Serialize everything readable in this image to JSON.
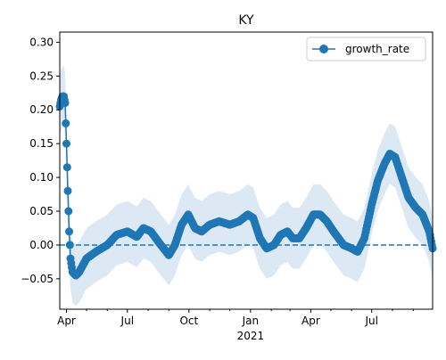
{
  "chart_data": {
    "type": "line",
    "title": "KY",
    "xlabel": "",
    "ylabel": "",
    "x_range": [
      "2020-03-22",
      "2021-09-30"
    ],
    "ylim": [
      -0.095,
      0.315
    ],
    "y_ticks": [
      -0.05,
      0.0,
      0.05,
      0.1,
      0.15,
      0.2,
      0.25,
      0.3
    ],
    "y_tick_labels": [
      "−0.05",
      "0.00",
      "0.05",
      "0.10",
      "0.15",
      "0.20",
      "0.25",
      "0.30"
    ],
    "x_ticks": [
      {
        "date": "2020-04-01",
        "label": "Apr",
        "sublabel": ""
      },
      {
        "date": "2020-07-01",
        "label": "Jul",
        "sublabel": ""
      },
      {
        "date": "2020-10-01",
        "label": "Oct",
        "sublabel": ""
      },
      {
        "date": "2021-01-01",
        "label": "Jan",
        "sublabel": "2021"
      },
      {
        "date": "2021-04-01",
        "label": "Apr",
        "sublabel": ""
      },
      {
        "date": "2021-07-01",
        "label": "Jul",
        "sublabel": ""
      }
    ],
    "minor_x_ticks": [
      "2020-05-01",
      "2020-06-01",
      "2020-08-01",
      "2020-09-01",
      "2020-11-01",
      "2020-12-01",
      "2021-02-01",
      "2021-03-01",
      "2021-05-01",
      "2021-06-01",
      "2021-08-01",
      "2021-09-01"
    ],
    "reference_line": {
      "y": 0,
      "style": "dashed"
    },
    "legend": {
      "position": "top-right",
      "entries": [
        "growth_rate"
      ]
    },
    "grid": false,
    "series": [
      {
        "name": "growth_rate",
        "color": "#1f77b4",
        "band_color": "#dce9f5",
        "band_width": 0.045,
        "points": [
          {
            "x": "2020-03-22",
            "y": 0.205
          },
          {
            "x": "2020-03-24",
            "y": 0.215
          },
          {
            "x": "2020-03-26",
            "y": 0.22
          },
          {
            "x": "2020-03-28",
            "y": 0.22
          },
          {
            "x": "2020-03-30",
            "y": 0.21
          },
          {
            "x": "2020-04-01",
            "y": 0.15
          },
          {
            "x": "2020-04-03",
            "y": 0.08
          },
          {
            "x": "2020-04-05",
            "y": 0.02
          },
          {
            "x": "2020-04-07",
            "y": -0.02
          },
          {
            "x": "2020-04-10",
            "y": -0.04
          },
          {
            "x": "2020-04-15",
            "y": -0.045
          },
          {
            "x": "2020-04-20",
            "y": -0.04
          },
          {
            "x": "2020-05-01",
            "y": -0.02
          },
          {
            "x": "2020-05-15",
            "y": -0.01
          },
          {
            "x": "2020-06-01",
            "y": 0.0
          },
          {
            "x": "2020-06-15",
            "y": 0.015
          },
          {
            "x": "2020-07-01",
            "y": 0.02
          },
          {
            "x": "2020-07-15",
            "y": 0.012
          },
          {
            "x": "2020-07-25",
            "y": 0.025
          },
          {
            "x": "2020-08-05",
            "y": 0.02
          },
          {
            "x": "2020-08-20",
            "y": 0.0
          },
          {
            "x": "2020-09-01",
            "y": -0.015
          },
          {
            "x": "2020-09-10",
            "y": 0.0
          },
          {
            "x": "2020-09-20",
            "y": 0.03
          },
          {
            "x": "2020-09-30",
            "y": 0.045
          },
          {
            "x": "2020-10-10",
            "y": 0.025
          },
          {
            "x": "2020-10-20",
            "y": 0.02
          },
          {
            "x": "2020-11-01",
            "y": 0.03
          },
          {
            "x": "2020-11-15",
            "y": 0.035
          },
          {
            "x": "2020-12-01",
            "y": 0.03
          },
          {
            "x": "2020-12-15",
            "y": 0.035
          },
          {
            "x": "2020-12-28",
            "y": 0.045
          },
          {
            "x": "2021-01-05",
            "y": 0.04
          },
          {
            "x": "2021-01-15",
            "y": 0.01
          },
          {
            "x": "2021-01-25",
            "y": -0.005
          },
          {
            "x": "2021-02-05",
            "y": 0.0
          },
          {
            "x": "2021-02-15",
            "y": 0.015
          },
          {
            "x": "2021-02-25",
            "y": 0.02
          },
          {
            "x": "2021-03-05",
            "y": 0.01
          },
          {
            "x": "2021-03-15",
            "y": 0.01
          },
          {
            "x": "2021-03-25",
            "y": 0.025
          },
          {
            "x": "2021-04-05",
            "y": 0.045
          },
          {
            "x": "2021-04-15",
            "y": 0.045
          },
          {
            "x": "2021-04-25",
            "y": 0.035
          },
          {
            "x": "2021-05-05",
            "y": 0.02
          },
          {
            "x": "2021-05-20",
            "y": 0.0
          },
          {
            "x": "2021-06-01",
            "y": -0.005
          },
          {
            "x": "2021-06-10",
            "y": -0.01
          },
          {
            "x": "2021-06-20",
            "y": 0.01
          },
          {
            "x": "2021-07-01",
            "y": 0.06
          },
          {
            "x": "2021-07-10",
            "y": 0.095
          },
          {
            "x": "2021-07-20",
            "y": 0.12
          },
          {
            "x": "2021-07-28",
            "y": 0.135
          },
          {
            "x": "2021-08-05",
            "y": 0.13
          },
          {
            "x": "2021-08-15",
            "y": 0.1
          },
          {
            "x": "2021-08-25",
            "y": 0.07
          },
          {
            "x": "2021-09-05",
            "y": 0.055
          },
          {
            "x": "2021-09-15",
            "y": 0.045
          },
          {
            "x": "2021-09-25",
            "y": 0.02
          },
          {
            "x": "2021-09-30",
            "y": -0.005
          }
        ]
      }
    ]
  }
}
